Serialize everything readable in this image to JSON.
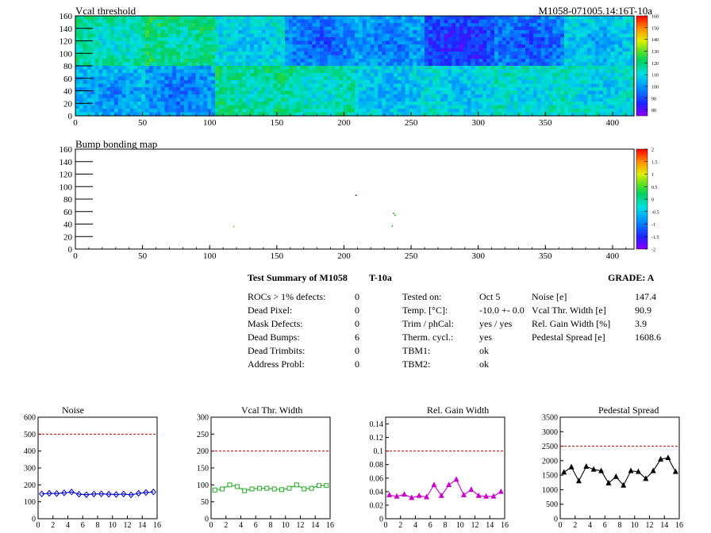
{
  "page_title": "M1058-071005.14:16T-10a",
  "chart_data": [
    {
      "type": "heatmap",
      "title": "Vcal threshold",
      "xlim": [
        0,
        416
      ],
      "ylim": [
        0,
        160
      ],
      "xticks": [
        0,
        50,
        100,
        150,
        200,
        250,
        300,
        350,
        400
      ],
      "yticks": [
        0,
        20,
        40,
        60,
        80,
        100,
        120,
        140,
        160
      ],
      "colorbar": {
        "min": 75,
        "max": 160,
        "ticks": [
          80,
          90,
          100,
          110,
          120,
          130,
          140,
          150,
          160
        ]
      },
      "roc_grid": {
        "columns": 8,
        "rows": 2,
        "cols_per_roc": 52,
        "rows_per_roc": 80
      },
      "roc_mean_threshold": {
        "top": [
          118,
          122,
          112,
          100,
          103,
          92,
          98,
          110
        ],
        "bottom": [
          106,
          102,
          120,
          118,
          110,
          112,
          115,
          114
        ]
      }
    },
    {
      "type": "heatmap",
      "title": "Bump bonding map",
      "xlim": [
        0,
        416
      ],
      "ylim": [
        0,
        160
      ],
      "xticks": [
        0,
        50,
        100,
        150,
        200,
        250,
        300,
        350,
        400
      ],
      "yticks": [
        0,
        20,
        40,
        60,
        80,
        100,
        120,
        140,
        160
      ],
      "colorbar": {
        "min": -2,
        "max": 2,
        "ticks": [
          2,
          1.5,
          1,
          0.5,
          0,
          -0.5,
          -1,
          -1.5,
          -2
        ]
      },
      "points": [
        {
          "x": 209,
          "y": 86
        },
        {
          "x": 237,
          "y": 57
        },
        {
          "x": 238,
          "y": 54
        },
        {
          "x": 236,
          "y": 37
        },
        {
          "x": 118,
          "y": 36
        }
      ]
    },
    {
      "type": "line",
      "title": "Noise",
      "x": [
        0,
        1,
        2,
        3,
        4,
        5,
        6,
        7,
        8,
        9,
        10,
        11,
        12,
        13,
        14,
        15
      ],
      "values": [
        147,
        150,
        149,
        153,
        158,
        145,
        142,
        146,
        147,
        145,
        143,
        146,
        141,
        150,
        155,
        158
      ],
      "xlim": [
        0,
        16
      ],
      "ylim": [
        0,
        600
      ],
      "yticks": [
        0,
        100,
        200,
        300,
        400,
        500,
        600
      ],
      "xticks": [
        0,
        2,
        4,
        6,
        8,
        10,
        12,
        14,
        16
      ],
      "threshold": 500,
      "color": "#0000cc",
      "marker": "diamond"
    },
    {
      "type": "line",
      "title": "Vcal Thr. Width",
      "x": [
        0,
        1,
        2,
        3,
        4,
        5,
        6,
        7,
        8,
        9,
        10,
        11,
        12,
        13,
        14,
        15
      ],
      "values": [
        85,
        88,
        100,
        95,
        83,
        88,
        90,
        90,
        88,
        86,
        90,
        100,
        88,
        90,
        98,
        98
      ],
      "xlim": [
        0,
        16
      ],
      "ylim": [
        0,
        300
      ],
      "yticks": [
        0,
        50,
        100,
        150,
        200,
        250,
        300
      ],
      "xticks": [
        0,
        2,
        4,
        6,
        8,
        10,
        12,
        14,
        16
      ],
      "threshold": 200,
      "color": "#22aa22",
      "marker": "square"
    },
    {
      "type": "line",
      "title": "Rel. Gain Width",
      "x": [
        0,
        1,
        2,
        3,
        4,
        5,
        6,
        7,
        8,
        9,
        10,
        11,
        12,
        13,
        14,
        15
      ],
      "values": [
        0.035,
        0.033,
        0.036,
        0.031,
        0.034,
        0.032,
        0.05,
        0.034,
        0.05,
        0.058,
        0.035,
        0.043,
        0.034,
        0.033,
        0.033,
        0.04
      ],
      "xlim": [
        0,
        16
      ],
      "ylim": [
        0,
        0.15
      ],
      "yticks": [
        0,
        0.02,
        0.04,
        0.06,
        0.08,
        0.1,
        0.12,
        0.14
      ],
      "xticks": [
        0,
        2,
        4,
        6,
        8,
        10,
        12,
        14,
        16
      ],
      "threshold": 0.1,
      "color": "#cc00cc",
      "marker": "triangle"
    },
    {
      "type": "line",
      "title": "Pedestal Spread",
      "x": [
        0,
        1,
        2,
        3,
        4,
        5,
        6,
        7,
        8,
        9,
        10,
        11,
        12,
        13,
        14,
        15
      ],
      "values": [
        1600,
        1780,
        1300,
        1800,
        1700,
        1650,
        1230,
        1450,
        1150,
        1650,
        1620,
        1380,
        1650,
        2050,
        2100,
        1620
      ],
      "xlim": [
        0,
        16
      ],
      "ylim": [
        0,
        3500
      ],
      "yticks": [
        0,
        500,
        1000,
        1500,
        2000,
        2500,
        3000,
        3500
      ],
      "xticks": [
        0,
        2,
        4,
        6,
        8,
        10,
        12,
        14,
        16
      ],
      "threshold": 2500,
      "color": "#000000",
      "marker": "triangle"
    }
  ],
  "summary": {
    "title": "Test Summary of M1058",
    "temp_label": "T-10a",
    "grade": "GRADE:  A",
    "defects": [
      {
        "label": "ROCs > 1% defects:",
        "value": "0"
      },
      {
        "label": "Dead Pixel:",
        "value": "0"
      },
      {
        "label": "Mask Defects:",
        "value": "0"
      },
      {
        "label": "Dead Bumps:",
        "value": "6"
      },
      {
        "label": "Dead Trimbits:",
        "value": "0"
      },
      {
        "label": "Address Probl:",
        "value": "0"
      }
    ],
    "conditions": [
      {
        "label": "Tested on:",
        "value": "Oct 5"
      },
      {
        "label": "Temp. [°C]:",
        "value": "-10.0 +- 0.0"
      },
      {
        "label": "Trim / phCal:",
        "value": "yes / yes"
      },
      {
        "label": "Therm. cycl.:",
        "value": "yes"
      },
      {
        "label": "TBM1:",
        "value": "ok"
      },
      {
        "label": "TBM2:",
        "value": "ok"
      }
    ],
    "results": [
      {
        "label": "Noise [e]",
        "value": "147.4"
      },
      {
        "label": "Vcal Thr. Width [e]",
        "value": "90.9"
      },
      {
        "label": "Rel. Gain Width [%]",
        "value": "3.9"
      },
      {
        "label": "Pedestal Spread [e]",
        "value": "1608.6"
      }
    ]
  }
}
